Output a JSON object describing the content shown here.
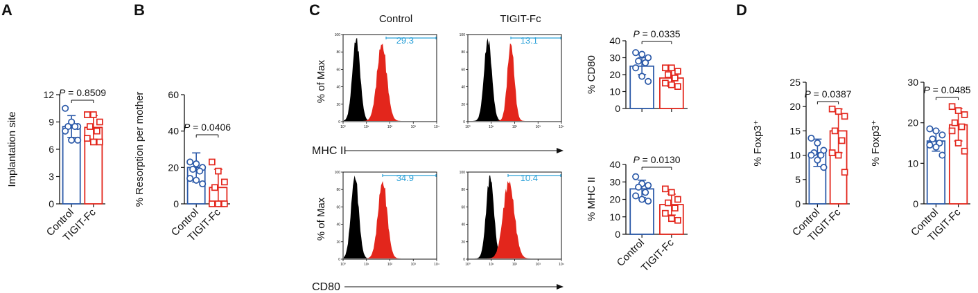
{
  "colors": {
    "control": "#2b59a8",
    "tigit": "#e3261c",
    "gate": "#2aa0d8",
    "isotype": "#000000",
    "stained": "#e3261c"
  },
  "panels": {
    "A": "A",
    "B": "B",
    "C": "C",
    "D": "D"
  },
  "hist": {
    "col_control": "Control",
    "col_tigit": "TIGIT-Fc",
    "ylabel": "% of Max",
    "marker_mhc": "MHC II",
    "marker_cd80": "CD80",
    "yticks": [
      "0",
      "20",
      "40",
      "60",
      "80",
      "100"
    ],
    "xticks": [
      "10⁰",
      "10¹",
      "10²",
      "10³",
      "10⁴"
    ],
    "gates": {
      "mhc_control": "29.3",
      "mhc_tigit": "13.1",
      "cd80_control": "34.9",
      "cd80_tigit": "10.4"
    }
  },
  "chart_data": [
    {
      "id": "A",
      "type": "bar",
      "categories": [
        "Control",
        "TIGIT-Fc"
      ],
      "ylabel": "Implantation site",
      "ylim": [
        0,
        12
      ],
      "yticks": [
        0,
        3,
        6,
        9,
        12
      ],
      "p_value": "P = 0.8509",
      "series": [
        {
          "name": "Control",
          "mean": 8.5,
          "sd": 1.2,
          "points": [
            10.5,
            9.0,
            8.5,
            8.5,
            8.5,
            8.0,
            7.0,
            7.0
          ]
        },
        {
          "name": "TIGIT-Fc",
          "mean": 8.4,
          "sd": 1.3,
          "points": [
            9.8,
            9.8,
            9.0,
            8.5,
            8.0,
            7.2,
            6.8,
            6.8
          ]
        }
      ]
    },
    {
      "id": "B",
      "type": "bar",
      "categories": [
        "Control",
        "TIGIT-Fc"
      ],
      "ylabel": "% Resorption per mother",
      "ylim": [
        0,
        60
      ],
      "yticks": [
        0,
        20,
        40,
        60
      ],
      "p_value": "P = 0.0406",
      "series": [
        {
          "name": "Control",
          "mean": 20,
          "sd": 8,
          "points": [
            23,
            22,
            20,
            19,
            18,
            14,
            13,
            11
          ]
        },
        {
          "name": "TIGIT-Fc",
          "mean": 9,
          "sd": 10,
          "points": [
            23,
            18,
            12,
            9,
            0,
            0,
            0,
            0
          ]
        }
      ]
    },
    {
      "id": "C-CD80",
      "type": "bar",
      "categories": [
        "Control",
        "TIGIT-Fc"
      ],
      "ylabel": "% CD80",
      "ylim": [
        0,
        40
      ],
      "yticks": [
        0,
        10,
        20,
        30,
        40
      ],
      "p_value": "P = 0.0335",
      "series": [
        {
          "name": "Control",
          "mean": 25,
          "sd": 5,
          "points": [
            33,
            32,
            30,
            28,
            27,
            24,
            19,
            16
          ]
        },
        {
          "name": "TIGIT-Fc",
          "mean": 18,
          "sd": 5,
          "points": [
            24,
            24,
            22,
            20,
            18,
            15,
            14,
            13
          ]
        }
      ]
    },
    {
      "id": "C-MHCII",
      "type": "bar",
      "categories": [
        "Control",
        "TIGIT-Fc"
      ],
      "ylabel": "% MHC  II",
      "ylim": [
        0,
        40
      ],
      "yticks": [
        0,
        10,
        20,
        30,
        40
      ],
      "p_value": "P = 0.0130",
      "series": [
        {
          "name": "Control",
          "mean": 26,
          "sd": 5,
          "points": [
            33,
            29,
            28,
            27,
            24,
            22,
            20,
            19
          ]
        },
        {
          "name": "TIGIT-Fc",
          "mean": 17,
          "sd": 6,
          "points": [
            26,
            24,
            20,
            18,
            15,
            12,
            9,
            8
          ]
        }
      ]
    },
    {
      "id": "D1",
      "type": "bar",
      "categories": [
        "Control",
        "TIGIT-Fc"
      ],
      "ylabel": "% Foxp3⁺",
      "ylim": [
        0,
        25
      ],
      "yticks": [
        0,
        5,
        10,
        15,
        20,
        25
      ],
      "p_value": "P = 0.0387",
      "series": [
        {
          "name": "Control",
          "mean": 10.5,
          "sd": 2.8,
          "points": [
            13.5,
            12.5,
            11,
            10.5,
            10,
            10,
            9,
            7.5
          ]
        },
        {
          "name": "TIGIT-Fc",
          "mean": 15,
          "sd": 4.5,
          "points": [
            19.5,
            19,
            18,
            15,
            13,
            10.5,
            10,
            6.5
          ]
        }
      ]
    },
    {
      "id": "D2",
      "type": "bar",
      "categories": [
        "Control",
        "TIGIT-Fc"
      ],
      "ylabel": "% Foxp3⁺",
      "ylim": [
        0,
        30
      ],
      "yticks": [
        0,
        10,
        20,
        30
      ],
      "p_value": "P = 0.0485",
      "series": [
        {
          "name": "Control",
          "mean": 15.5,
          "sd": 2.5,
          "points": [
            18.5,
            18,
            17,
            16,
            15,
            14.5,
            14,
            12
          ]
        },
        {
          "name": "TIGIT-Fc",
          "mean": 19.5,
          "sd": 4,
          "points": [
            24,
            23,
            22,
            20,
            19,
            18,
            15,
            13
          ]
        }
      ]
    }
  ]
}
